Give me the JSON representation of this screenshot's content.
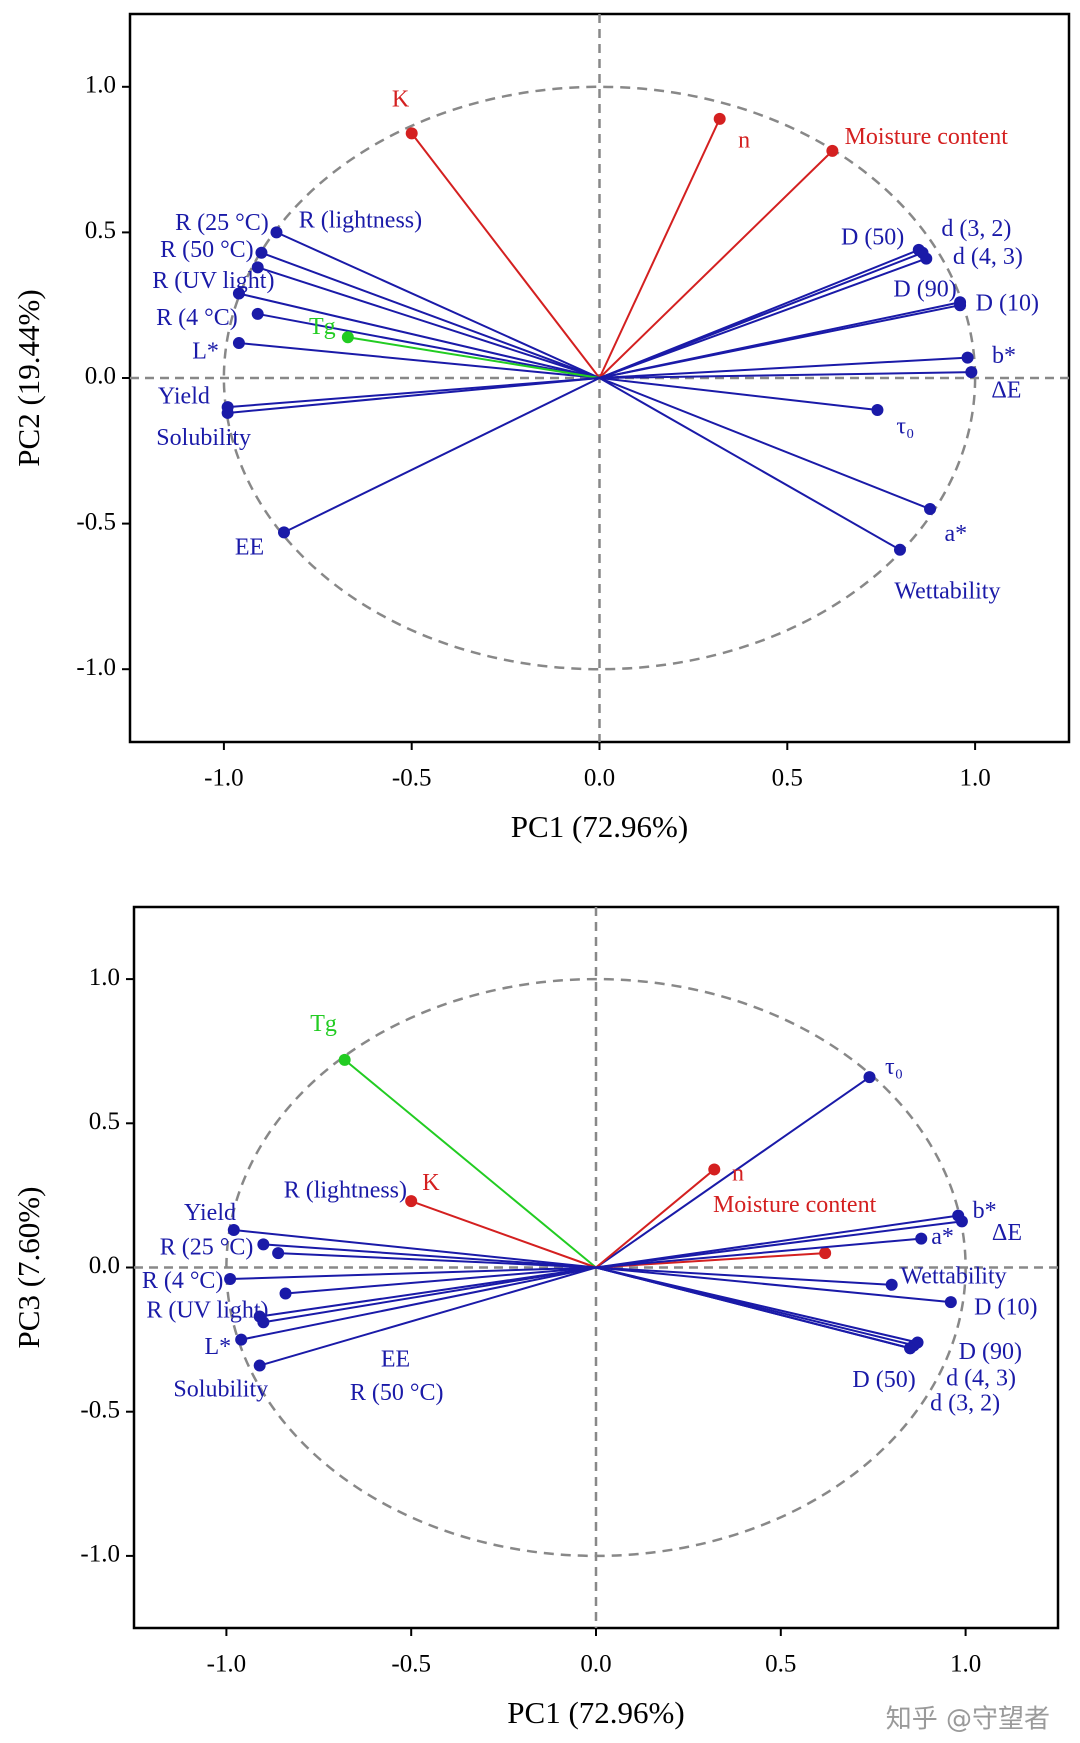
{
  "chart_data": [
    {
      "type": "loading",
      "xlabel": "PC1 (72.96%)",
      "ylabel": "PC2 (19.44%)",
      "xlim": [
        -1.25,
        1.25
      ],
      "ylim": [
        -1.25,
        1.25
      ],
      "xticks": [
        {
          "value": -1.0,
          "label": "-1.0"
        },
        -0.5,
        {
          "value": 0.0,
          "label": "0.0"
        },
        0.5,
        {
          "value": 1.0,
          "label": "1.0"
        }
      ],
      "yticks": [
        {
          "value": -1.0,
          "label": "-1.0"
        },
        -0.5,
        {
          "value": 0.0,
          "label": "0.0"
        },
        0.5,
        {
          "value": 1.0,
          "label": "1.0"
        }
      ],
      "points": [
        {
          "name": "K",
          "color": "#d42020",
          "x": -0.5,
          "y": 0.84
        },
        {
          "name": "n",
          "color": "#d42020",
          "x": 0.32,
          "y": 0.89
        },
        {
          "name": "Moisture content",
          "color": "#d42020",
          "x": 0.62,
          "y": 0.78
        },
        {
          "name": "R (25 °C)",
          "color": "#1a1aa8",
          "x": -0.86,
          "y": 0.5
        },
        {
          "name": "R (50 °C)",
          "color": "#1a1aa8",
          "x": -0.9,
          "y": 0.43
        },
        {
          "name": "R (lightness)",
          "color": "#1a1aa8",
          "x": -0.91,
          "y": 0.38
        },
        {
          "name": "R (UV light)",
          "color": "#1a1aa8",
          "x": -0.96,
          "y": 0.29
        },
        {
          "name": "R (4 °C)",
          "color": "#1a1aa8",
          "x": -0.91,
          "y": 0.22
        },
        {
          "name": "L*",
          "color": "#1a1aa8",
          "x": -0.96,
          "y": 0.12
        },
        {
          "name": "Tg",
          "color": "#22cc22",
          "x": -0.67,
          "y": 0.14
        },
        {
          "name": "Yield",
          "color": "#1a1aa8",
          "x": -0.99,
          "y": -0.1
        },
        {
          "name": "Solubility",
          "color": "#1a1aa8",
          "x": -0.99,
          "y": -0.12
        },
        {
          "name": "EE",
          "color": "#1a1aa8",
          "x": -0.84,
          "y": -0.53
        },
        {
          "name": "D (50)",
          "color": "#1a1aa8",
          "x": 0.85,
          "y": 0.44
        },
        {
          "name": "d (3, 2)",
          "color": "#1a1aa8",
          "x": 0.86,
          "y": 0.43
        },
        {
          "name": "d (4, 3)",
          "color": "#1a1aa8",
          "x": 0.87,
          "y": 0.41
        },
        {
          "name": "D (90)",
          "color": "#1a1aa8",
          "x": 0.96,
          "y": 0.26
        },
        {
          "name": "D (10)",
          "color": "#1a1aa8",
          "x": 0.96,
          "y": 0.25
        },
        {
          "name": "b*",
          "color": "#1a1aa8",
          "x": 0.98,
          "y": 0.07
        },
        {
          "name": "ΔE",
          "color": "#1a1aa8",
          "x": 0.99,
          "y": 0.02
        },
        {
          "name": "τ₀",
          "color": "#1a1aa8",
          "x": 0.74,
          "y": -0.11
        },
        {
          "name": "a*",
          "color": "#1a1aa8",
          "x": 0.88,
          "y": -0.45
        },
        {
          "name": "Wettability",
          "color": "#1a1aa8",
          "x": 0.8,
          "y": -0.59
        }
      ]
    },
    {
      "type": "loading",
      "xlabel": "PC1 (72.96%)",
      "ylabel": "PC3 (7.60%)",
      "xlim": [
        -1.25,
        1.25
      ],
      "ylim": [
        -1.25,
        1.25
      ],
      "xticks": [
        {
          "value": -1.0,
          "label": "-1.0"
        },
        -0.5,
        {
          "value": 0.0,
          "label": "0.0"
        },
        0.5,
        {
          "value": 1.0,
          "label": "1.0"
        }
      ],
      "yticks": [
        {
          "value": -1.0,
          "label": "-1.0"
        },
        -0.5,
        {
          "value": 0.0,
          "label": "0.0"
        },
        0.5,
        {
          "value": 1.0,
          "label": "1.0"
        }
      ],
      "points": [
        {
          "name": "Tg",
          "color": "#22cc22",
          "x": -0.68,
          "y": 0.72
        },
        {
          "name": "τ₀",
          "color": "#1a1aa8",
          "x": 0.74,
          "y": 0.66
        },
        {
          "name": "n",
          "color": "#d42020",
          "x": 0.32,
          "y": 0.34
        },
        {
          "name": "K",
          "color": "#d42020",
          "x": -0.5,
          "y": 0.23
        },
        {
          "name": "Moisture content",
          "color": "#d42020",
          "x": 0.62,
          "y": 0.05
        },
        {
          "name": "Yield",
          "color": "#1a1aa8",
          "x": -0.98,
          "y": 0.13
        },
        {
          "name": "R (25 °C)",
          "color": "#1a1aa8",
          "x": -0.9,
          "y": 0.08
        },
        {
          "name": "R (lightness)",
          "color": "#1a1aa8",
          "x": -0.86,
          "y": 0.05
        },
        {
          "name": "R (4 °C)",
          "color": "#1a1aa8",
          "x": -0.99,
          "y": -0.04
        },
        {
          "name": "R (UV light)",
          "color": "#1a1aa8",
          "x": -0.91,
          "y": -0.17
        },
        {
          "name": "EE",
          "color": "#1a1aa8",
          "x": -0.84,
          "y": -0.09
        },
        {
          "name": "R (50 °C)",
          "color": "#1a1aa8",
          "x": -0.9,
          "y": -0.19
        },
        {
          "name": "L*",
          "color": "#1a1aa8",
          "x": -0.96,
          "y": -0.25
        },
        {
          "name": "Solubility",
          "color": "#1a1aa8",
          "x": -0.91,
          "y": -0.34
        },
        {
          "name": "b*",
          "color": "#1a1aa8",
          "x": 0.98,
          "y": 0.18
        },
        {
          "name": "ΔE",
          "color": "#1a1aa8",
          "x": 0.99,
          "y": 0.16
        },
        {
          "name": "a*",
          "color": "#1a1aa8",
          "x": 0.88,
          "y": 0.1
        },
        {
          "name": "Wettability",
          "color": "#1a1aa8",
          "x": 0.8,
          "y": -0.06
        },
        {
          "name": "D (10)",
          "color": "#1a1aa8",
          "x": 0.96,
          "y": -0.12
        },
        {
          "name": "D (90)",
          "color": "#1a1aa8",
          "x": 0.87,
          "y": -0.26
        },
        {
          "name": "d (4, 3)",
          "color": "#1a1aa8",
          "x": 0.86,
          "y": -0.27
        },
        {
          "name": "d (3, 2)",
          "color": "#1a1aa8",
          "x": 0.85,
          "y": -0.28
        },
        {
          "name": "D (50)",
          "color": "#1a1aa8",
          "x": 0.85,
          "y": -0.28
        }
      ]
    }
  ],
  "watermark": "知乎 @守望者"
}
